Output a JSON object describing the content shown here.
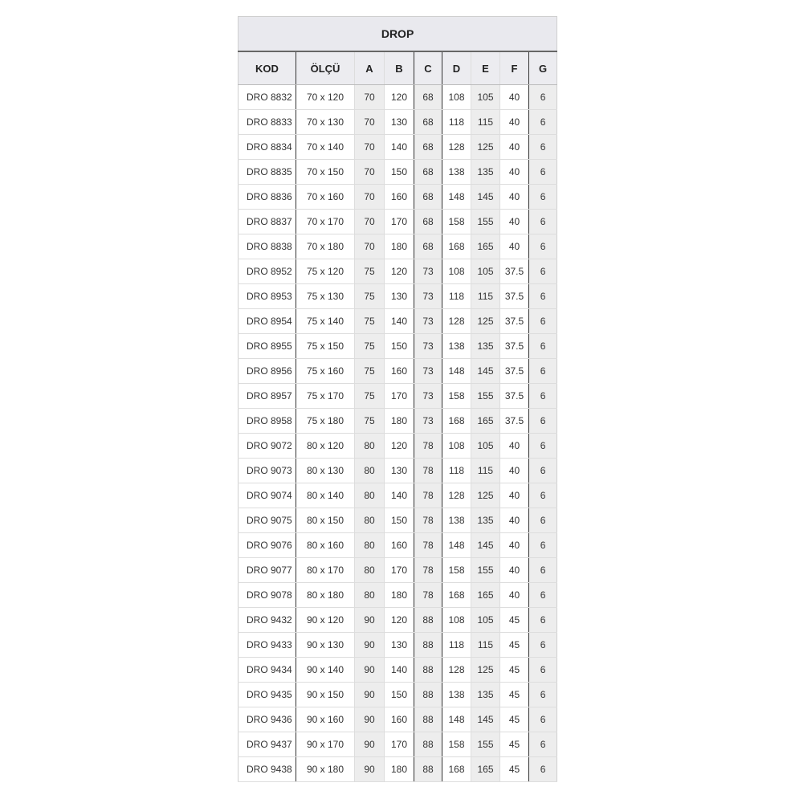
{
  "title": "DROP",
  "headers": [
    "KOD",
    "ÖLÇÜ",
    "A",
    "B",
    "C",
    "D",
    "E",
    "F",
    "G"
  ],
  "rows": [
    [
      "DRO 8832",
      "70 x 120",
      "70",
      "120",
      "68",
      "108",
      "105",
      "40",
      "6"
    ],
    [
      "DRO 8833",
      "70 x 130",
      "70",
      "130",
      "68",
      "118",
      "115",
      "40",
      "6"
    ],
    [
      "DRO 8834",
      "70 x 140",
      "70",
      "140",
      "68",
      "128",
      "125",
      "40",
      "6"
    ],
    [
      "DRO 8835",
      "70 x 150",
      "70",
      "150",
      "68",
      "138",
      "135",
      "40",
      "6"
    ],
    [
      "DRO 8836",
      "70 x 160",
      "70",
      "160",
      "68",
      "148",
      "145",
      "40",
      "6"
    ],
    [
      "DRO 8837",
      "70 x 170",
      "70",
      "170",
      "68",
      "158",
      "155",
      "40",
      "6"
    ],
    [
      "DRO 8838",
      "70 x 180",
      "70",
      "180",
      "68",
      "168",
      "165",
      "40",
      "6"
    ],
    [
      "DRO 8952",
      "75 x 120",
      "75",
      "120",
      "73",
      "108",
      "105",
      "37.5",
      "6"
    ],
    [
      "DRO 8953",
      "75 x 130",
      "75",
      "130",
      "73",
      "118",
      "115",
      "37.5",
      "6"
    ],
    [
      "DRO 8954",
      "75 x 140",
      "75",
      "140",
      "73",
      "128",
      "125",
      "37.5",
      "6"
    ],
    [
      "DRO 8955",
      "75 x 150",
      "75",
      "150",
      "73",
      "138",
      "135",
      "37.5",
      "6"
    ],
    [
      "DRO 8956",
      "75 x 160",
      "75",
      "160",
      "73",
      "148",
      "145",
      "37.5",
      "6"
    ],
    [
      "DRO 8957",
      "75 x 170",
      "75",
      "170",
      "73",
      "158",
      "155",
      "37.5",
      "6"
    ],
    [
      "DRO 8958",
      "75 x 180",
      "75",
      "180",
      "73",
      "168",
      "165",
      "37.5",
      "6"
    ],
    [
      "DRO 9072",
      "80 x 120",
      "80",
      "120",
      "78",
      "108",
      "105",
      "40",
      "6"
    ],
    [
      "DRO 9073",
      "80 x 130",
      "80",
      "130",
      "78",
      "118",
      "115",
      "40",
      "6"
    ],
    [
      "DRO 9074",
      "80 x 140",
      "80",
      "140",
      "78",
      "128",
      "125",
      "40",
      "6"
    ],
    [
      "DRO 9075",
      "80 x 150",
      "80",
      "150",
      "78",
      "138",
      "135",
      "40",
      "6"
    ],
    [
      "DRO 9076",
      "80 x 160",
      "80",
      "160",
      "78",
      "148",
      "145",
      "40",
      "6"
    ],
    [
      "DRO 9077",
      "80 x 170",
      "80",
      "170",
      "78",
      "158",
      "155",
      "40",
      "6"
    ],
    [
      "DRO 9078",
      "80 x 180",
      "80",
      "180",
      "78",
      "168",
      "165",
      "40",
      "6"
    ],
    [
      "DRO 9432",
      "90 x 120",
      "90",
      "120",
      "88",
      "108",
      "105",
      "45",
      "6"
    ],
    [
      "DRO 9433",
      "90 x 130",
      "90",
      "130",
      "88",
      "118",
      "115",
      "45",
      "6"
    ],
    [
      "DRO 9434",
      "90 x 140",
      "90",
      "140",
      "88",
      "128",
      "125",
      "45",
      "6"
    ],
    [
      "DRO 9435",
      "90 x 150",
      "90",
      "150",
      "88",
      "138",
      "135",
      "45",
      "6"
    ],
    [
      "DRO 9436",
      "90 x 160",
      "90",
      "160",
      "88",
      "148",
      "145",
      "45",
      "6"
    ],
    [
      "DRO 9437",
      "90 x 170",
      "90",
      "170",
      "88",
      "158",
      "155",
      "45",
      "6"
    ],
    [
      "DRO 9438",
      "90 x 180",
      "90",
      "180",
      "88",
      "168",
      "165",
      "45",
      "6"
    ]
  ]
}
